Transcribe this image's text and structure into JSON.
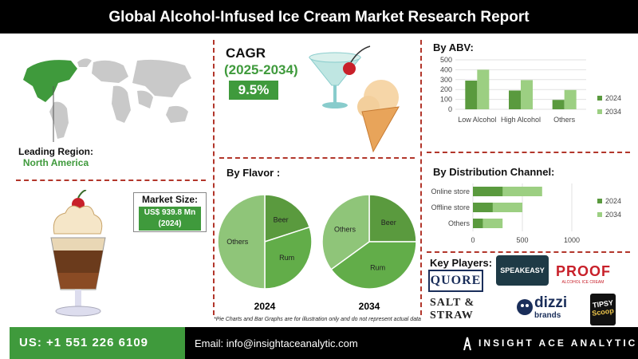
{
  "header": {
    "title": "Global Alcohol-Infused Ice Cream Market Research Report"
  },
  "region": {
    "label": "Leading Region:",
    "value": "North America"
  },
  "cagr": {
    "title": "CAGR",
    "period": "(2025-2034)",
    "value": "9.5%"
  },
  "market_size": {
    "label": "Market Size:",
    "value_line1": "US$ 939.8 Mn",
    "value_line2": "(2024)"
  },
  "note": "*Pie Charts and Bar Graphs are for illustration only and do not represent actual data",
  "players": {
    "title": "Key Players:",
    "names": [
      "QUORE",
      "SPEAKEASY",
      "PROOF",
      "SALT & STRAW",
      "dizzi brands",
      "TIPSY Scoop"
    ],
    "subtexts": [
      "ALCOHOL ICE CREAM",
      "dizzi",
      "brands",
      "TIPSY",
      "Scoop"
    ]
  },
  "footer": {
    "phone": "US: +1 551 226 6109",
    "email": "Email: info@insightaceanalytic.com",
    "brand": "INSIGHT ACE ANALYTIC"
  },
  "colors": {
    "dark_green": "#5a9a3e",
    "light_green": "#9ccf82",
    "pie_mid": "#62ad49",
    "pie_light": "#8fc579",
    "accent_red": "#b2362b"
  },
  "chart_data": [
    {
      "type": "bar",
      "title": "By ABV:",
      "categories": [
        "Low Alcohol",
        "High Alcohol",
        "Others"
      ],
      "series": [
        {
          "name": "2024",
          "values": [
            290,
            190,
            95
          ]
        },
        {
          "name": "2034",
          "values": [
            400,
            295,
            195
          ]
        }
      ],
      "ylim": [
        0,
        500
      ],
      "yticks": [
        "0",
        "100",
        "200",
        "300",
        "400",
        "500"
      ],
      "legend": "right"
    },
    {
      "type": "bar",
      "title": "By Distribution Channel:",
      "orientation": "horizontal",
      "categories": [
        "Online store",
        "Offline store",
        "Others"
      ],
      "series": [
        {
          "name": "2024",
          "values": [
            300,
            200,
            100
          ]
        },
        {
          "name": "2034",
          "values": [
            700,
            500,
            300
          ]
        }
      ],
      "xlim": [
        0,
        1000
      ],
      "xticks": [
        "0",
        "500",
        "1000"
      ],
      "legend": "right"
    },
    {
      "type": "pie",
      "title": "By Flavor :",
      "caption": "2024",
      "slices": [
        {
          "name": "Beer",
          "value": 20
        },
        {
          "name": "Rum",
          "value": 30
        },
        {
          "name": "Others",
          "value": 50
        }
      ]
    },
    {
      "type": "pie",
      "caption": "2034",
      "slices": [
        {
          "name": "Beer",
          "value": 25
        },
        {
          "name": "Rum",
          "value": 40
        },
        {
          "name": "Others",
          "value": 35
        }
      ]
    }
  ]
}
